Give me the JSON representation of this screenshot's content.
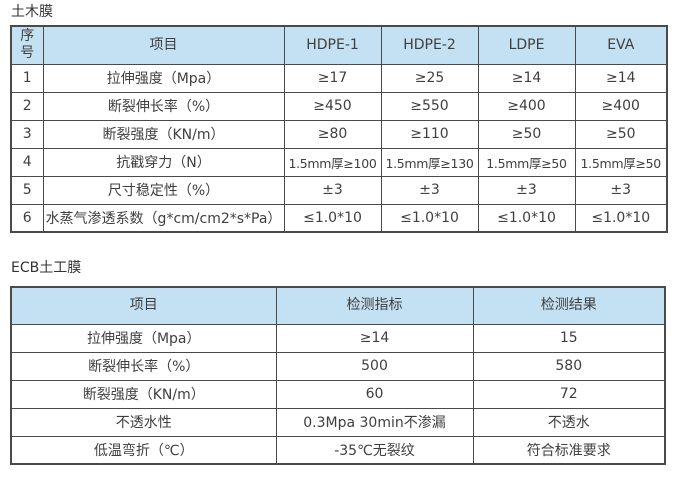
{
  "titles": {
    "table1": "土木膜",
    "table2": "ECB土工膜"
  },
  "colors": {
    "header_bg": "#c3e1f2",
    "border": "#4a4a4a",
    "text": "#3f3f3f"
  },
  "table1": {
    "headers": [
      "序号",
      "项目",
      "HDPE-1",
      "HDPE-2",
      "LDPE",
      "EVA"
    ],
    "rows": [
      [
        "1",
        "拉伸强度（Mpa）",
        "≥17",
        "≥25",
        "≥14",
        "≥14"
      ],
      [
        "2",
        "断裂伸长率（%）",
        "≥450",
        "≥550",
        "≥400",
        "≥400"
      ],
      [
        "3",
        "断裂强度（KN/m）",
        "≥80",
        "≥110",
        "≥50",
        "≥50"
      ],
      [
        "4",
        "抗戳穿力（N）",
        "1.5mm厚≥100",
        "1.5mm厚≥130",
        "1.5mm厚≥50",
        "1.5mm厚≥50"
      ],
      [
        "5",
        "尺寸稳定性（%）",
        "±3",
        "±3",
        "±3",
        "±3"
      ],
      [
        "6",
        "水蒸气渗透系数（g*cm/cm2*s*Pa）",
        "≤1.0*10",
        "≤1.0*10",
        "≤1.0*10",
        "≤1.0*10"
      ]
    ]
  },
  "table2": {
    "headers": [
      "项目",
      "检测指标",
      "检测结果"
    ],
    "rows": [
      [
        "拉伸强度（Mpa）",
        "≥14",
        "15"
      ],
      [
        "断裂伸长率（%）",
        "500",
        "580"
      ],
      [
        "断裂强度（KN/m）",
        "60",
        "72"
      ],
      [
        "不透水性",
        "0.3Mpa 30min不渗漏",
        "不透水"
      ],
      [
        "低温弯折（℃）",
        "-35℃无裂纹",
        "符合标准要求"
      ]
    ]
  }
}
